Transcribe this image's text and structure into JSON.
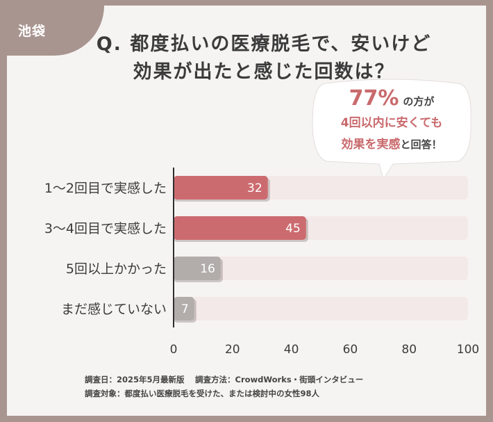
{
  "tag": {
    "label": "池袋"
  },
  "question": {
    "line1": "Q. 都度払いの医療脱毛で、安いけど",
    "line2": "効果が出たと感じた回数は？"
  },
  "bubble": {
    "percent": "77%",
    "line1_suffix": "の方が",
    "line2": "4回以内に安くても",
    "line3_accent": "効果を実感",
    "line3_rest": "と回答！"
  },
  "chart_data": {
    "type": "bar",
    "orientation": "horizontal",
    "categories": [
      "1〜2回目で実感した",
      "3〜4回目で実感した",
      "5回以上かかった",
      "まだ感じていない"
    ],
    "values": [
      32,
      45,
      16,
      7
    ],
    "xlim": [
      0,
      100
    ],
    "xticks": [
      0,
      20,
      40,
      60,
      80,
      100
    ],
    "grid": false,
    "colors": {
      "accent": "#cc6b6f",
      "muted": "#b2adab",
      "track": "#f3e9e8",
      "bar_order": [
        "accent",
        "accent",
        "muted",
        "muted"
      ]
    }
  },
  "footnote": {
    "line1": "調査日：2025年5月最新版　 調査方法：CrowdWorks・街頭インタビュー",
    "line2": "調査対象：都度払い医療脱毛を受けた、または検討中の女性98人"
  }
}
